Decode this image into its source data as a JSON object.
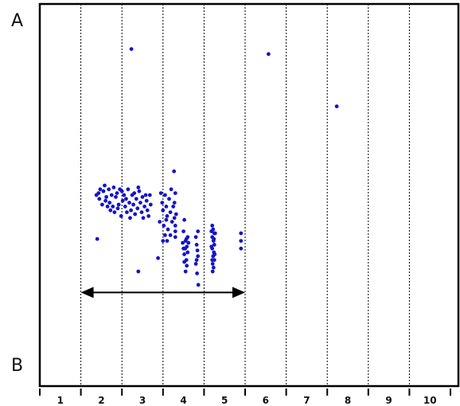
{
  "labels": {
    "top": "A",
    "bottom": "B"
  },
  "colors": {
    "points": "#1414c8",
    "frame": "#000000",
    "grid": "#000000",
    "arrow": "#000000"
  },
  "chart_data": {
    "type": "scatter",
    "title": "",
    "xlabel": "",
    "ylabel": "",
    "x_categories": [
      "1",
      "2",
      "3",
      "4",
      "5",
      "6",
      "7",
      "8",
      "9",
      "10"
    ],
    "xlim": [
      0,
      10
    ],
    "ylim": [
      0,
      1
    ],
    "y_end_labels": {
      "top": "A",
      "bottom": "B"
    },
    "grid": "vertical dashed lines between categories",
    "annotations": [
      {
        "type": "double-arrow",
        "from_x": 1,
        "to_x": 5,
        "y": 0.245
      }
    ],
    "points": [
      [
        2.23,
        0.882
      ],
      [
        5.57,
        0.869
      ],
      [
        7.23,
        0.732
      ],
      [
        3.27,
        0.562
      ],
      [
        1.38,
        0.5
      ],
      [
        1.43,
        0.505
      ],
      [
        1.45,
        0.49
      ],
      [
        1.55,
        0.51
      ],
      [
        1.6,
        0.485
      ],
      [
        1.68,
        0.515
      ],
      [
        1.7,
        0.48
      ],
      [
        1.75,
        0.5
      ],
      [
        1.78,
        0.47
      ],
      [
        1.8,
        0.52
      ],
      [
        1.72,
        0.46
      ],
      [
        1.82,
        0.455
      ],
      [
        1.85,
        0.495
      ],
      [
        1.88,
        0.505
      ],
      [
        1.92,
        0.475
      ],
      [
        1.95,
        0.515
      ],
      [
        1.98,
        0.445
      ],
      [
        2.02,
        0.485
      ],
      [
        2.05,
        0.5
      ],
      [
        2.08,
        0.47
      ],
      [
        1.65,
        0.47
      ],
      [
        1.58,
        0.525
      ],
      [
        1.62,
        0.495
      ],
      [
        1.9,
        0.465
      ],
      [
        2.0,
        0.51
      ],
      [
        2.1,
        0.49
      ],
      [
        2.15,
        0.515
      ],
      [
        2.18,
        0.48
      ],
      [
        2.22,
        0.46
      ],
      [
        2.25,
        0.5
      ],
      [
        2.28,
        0.475
      ],
      [
        2.3,
        0.505
      ],
      [
        2.35,
        0.49
      ],
      [
        2.38,
        0.465
      ],
      [
        2.42,
        0.51
      ],
      [
        2.45,
        0.48
      ],
      [
        2.48,
        0.455
      ],
      [
        2.5,
        0.495
      ],
      [
        2.55,
        0.47
      ],
      [
        2.58,
        0.5
      ],
      [
        2.6,
        0.485
      ],
      [
        2.62,
        0.46
      ],
      [
        2.68,
        0.5
      ],
      [
        2.7,
        0.475
      ],
      [
        2.2,
        0.44
      ],
      [
        2.32,
        0.45
      ],
      [
        2.12,
        0.455
      ],
      [
        1.52,
        0.475
      ],
      [
        1.47,
        0.515
      ],
      [
        2.65,
        0.445
      ],
      [
        2.4,
        0.52
      ],
      [
        2.52,
        0.44
      ],
      [
        2.95,
        0.505
      ],
      [
        2.98,
        0.48
      ],
      [
        3.0,
        0.46
      ],
      [
        3.02,
        0.42
      ],
      [
        3.05,
        0.5
      ],
      [
        3.08,
        0.47
      ],
      [
        3.1,
        0.445
      ],
      [
        3.12,
        0.41
      ],
      [
        3.15,
        0.49
      ],
      [
        3.18,
        0.455
      ],
      [
        3.2,
        0.515
      ],
      [
        3.22,
        0.43
      ],
      [
        3.25,
        0.47
      ],
      [
        3.28,
        0.44
      ],
      [
        3.3,
        0.505
      ],
      [
        3.05,
        0.395
      ],
      [
        3.1,
        0.38
      ],
      [
        3.18,
        0.395
      ],
      [
        3.08,
        0.435
      ],
      [
        3.28,
        0.48
      ],
      [
        3.32,
        0.45
      ],
      [
        3.3,
        0.39
      ],
      [
        3.0,
        0.38
      ],
      [
        2.92,
        0.43
      ],
      [
        2.88,
        0.335
      ],
      [
        2.4,
        0.3
      ],
      [
        1.4,
        0.385
      ],
      [
        3.3,
        0.42
      ],
      [
        3.3,
        0.405
      ],
      [
        3.57,
        0.385
      ],
      [
        3.52,
        0.435
      ],
      [
        3.5,
        0.405
      ],
      [
        3.55,
        0.38
      ],
      [
        3.58,
        0.365
      ],
      [
        3.6,
        0.35
      ],
      [
        3.52,
        0.345
      ],
      [
        3.57,
        0.33
      ],
      [
        3.54,
        0.36
      ],
      [
        3.6,
        0.39
      ],
      [
        3.52,
        0.325
      ],
      [
        3.58,
        0.315
      ],
      [
        3.55,
        0.3
      ],
      [
        3.62,
        0.375
      ],
      [
        3.48,
        0.375
      ],
      [
        3.5,
        0.36
      ],
      [
        3.85,
        0.405
      ],
      [
        3.82,
        0.37
      ],
      [
        3.85,
        0.34
      ],
      [
        3.8,
        0.32
      ],
      [
        3.83,
        0.295
      ],
      [
        3.86,
        0.265
      ],
      [
        3.84,
        0.355
      ],
      [
        3.82,
        0.33
      ],
      [
        3.8,
        0.39
      ],
      [
        4.2,
        0.42
      ],
      [
        4.22,
        0.41
      ],
      [
        4.25,
        0.4
      ],
      [
        4.2,
        0.39
      ],
      [
        4.23,
        0.38
      ],
      [
        4.25,
        0.37
      ],
      [
        4.2,
        0.36
      ],
      [
        4.24,
        0.35
      ],
      [
        4.22,
        0.34
      ],
      [
        4.25,
        0.33
      ],
      [
        4.21,
        0.32
      ],
      [
        4.23,
        0.31
      ],
      [
        4.27,
        0.4
      ],
      [
        4.18,
        0.405
      ],
      [
        4.2,
        0.33
      ],
      [
        4.24,
        0.385
      ],
      [
        4.18,
        0.365
      ],
      [
        4.26,
        0.345
      ],
      [
        4.21,
        0.3
      ],
      [
        4.9,
        0.4
      ],
      [
        4.9,
        0.38
      ],
      [
        4.9,
        0.36
      ]
    ]
  }
}
